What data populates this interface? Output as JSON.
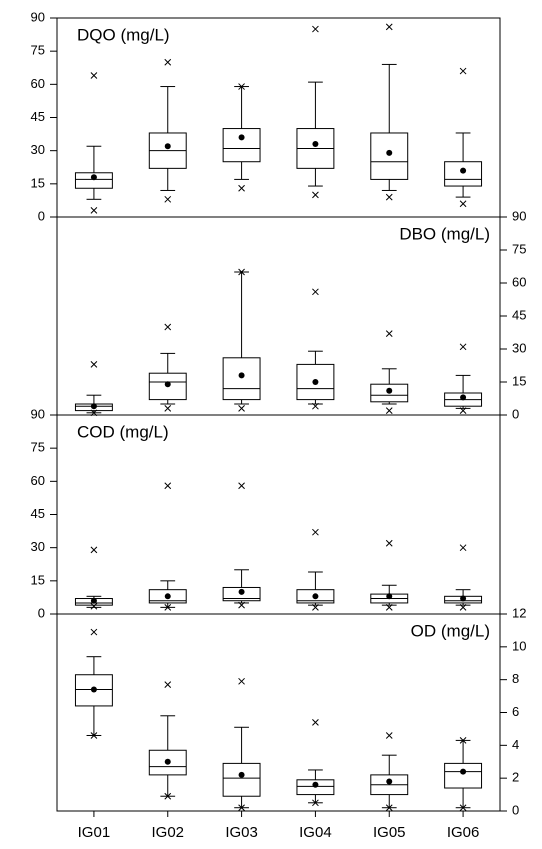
{
  "chart_data": [
    {
      "type": "box",
      "title": "DQO (mg/L)",
      "y_axis_side": "left",
      "color": "#000000",
      "ylim": [
        0,
        90
      ],
      "yticks": [
        0,
        15,
        30,
        45,
        60,
        75,
        90
      ],
      "whisker_low": [
        8,
        12,
        17,
        14,
        12,
        9
      ],
      "q1": [
        13,
        22,
        25,
        22,
        17,
        14
      ],
      "median": [
        17,
        30,
        31,
        31,
        25,
        17
      ],
      "q3": [
        20,
        38,
        40,
        40,
        38,
        25
      ],
      "whisker_high": [
        32,
        59,
        59,
        61,
        69,
        38
      ],
      "mean": [
        18,
        32,
        36,
        33,
        29,
        21
      ],
      "min": [
        3,
        8,
        13,
        10,
        9,
        6
      ],
      "max": [
        64,
        70,
        59,
        85,
        86,
        66
      ]
    },
    {
      "type": "box",
      "title": "DBO (mg/L)",
      "y_axis_side": "right",
      "color": "#000000",
      "ylim": [
        0,
        90
      ],
      "yticks": [
        0,
        15,
        30,
        45,
        60,
        75,
        90
      ],
      "whisker_low": [
        1,
        5,
        5,
        5,
        5,
        3
      ],
      "q1": [
        2,
        7,
        7,
        7,
        6,
        4
      ],
      "median": [
        4,
        15,
        12,
        12,
        9,
        7
      ],
      "q3": [
        5,
        19,
        26,
        23,
        14,
        10
      ],
      "whisker_high": [
        9,
        28,
        65,
        29,
        21,
        18
      ],
      "mean": [
        4,
        14,
        18,
        15,
        11,
        8
      ],
      "min": [
        1,
        3,
        3,
        4,
        2,
        2
      ],
      "max": [
        23,
        40,
        65,
        56,
        37,
        31
      ]
    },
    {
      "type": "box",
      "title": "COD (mg/L)",
      "y_axis_side": "left",
      "color": "#000000",
      "ylim": [
        0,
        90
      ],
      "yticks": [
        0,
        15,
        30,
        45,
        60,
        75,
        90
      ],
      "whisker_low": [
        3,
        3,
        5,
        4,
        4,
        4
      ],
      "q1": [
        4,
        5,
        6,
        5,
        5,
        5
      ],
      "median": [
        5,
        6,
        7,
        6,
        7,
        6
      ],
      "q3": [
        7,
        11,
        12,
        11,
        9,
        8
      ],
      "whisker_high": [
        8,
        15,
        20,
        19,
        13,
        11
      ],
      "mean": [
        6,
        8,
        10,
        8,
        8,
        7
      ],
      "min": [
        3.5,
        3,
        4,
        3,
        3,
        3
      ],
      "max": [
        29,
        58,
        58,
        37,
        32,
        30
      ]
    },
    {
      "type": "box",
      "title": "OD (mg/L)",
      "y_axis_side": "right",
      "color": "#000000",
      "categories": [
        "IG01",
        "IG02",
        "IG03",
        "IG04",
        "IG05",
        "IG06"
      ],
      "ylim": [
        0,
        12
      ],
      "yticks": [
        0,
        2,
        4,
        6,
        8,
        10,
        12
      ],
      "whisker_low": [
        4.6,
        0.9,
        0.2,
        0.5,
        0.2,
        0.2
      ],
      "q1": [
        6.4,
        2.2,
        0.9,
        1.0,
        1.0,
        1.4
      ],
      "median": [
        7.4,
        2.7,
        2.0,
        1.5,
        1.6,
        2.4
      ],
      "q3": [
        8.3,
        3.7,
        2.9,
        1.9,
        2.2,
        2.9
      ],
      "whisker_high": [
        9.4,
        5.8,
        5.1,
        2.5,
        3.4,
        4.3
      ],
      "mean": [
        7.4,
        3.0,
        2.2,
        1.6,
        1.8,
        2.4
      ],
      "min": [
        4.6,
        0.9,
        0.2,
        0.5,
        0.2,
        0.2
      ],
      "max": [
        10.9,
        7.7,
        7.9,
        5.4,
        4.6,
        4.3
      ]
    }
  ]
}
